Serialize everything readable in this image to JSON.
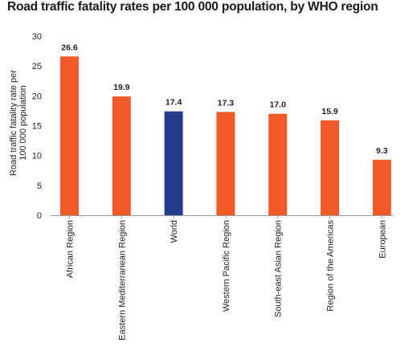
{
  "chart_data": {
    "type": "bar",
    "title": "Road traffic fatality rates per 100 000 population, by WHO region",
    "ylabel": "Road traffic fatality rate per 100 000 population",
    "ylabel_lines": [
      "Road traffic fatality rate per",
      "100 000 population"
    ],
    "xlabel": "",
    "ylim": [
      0,
      30
    ],
    "yticks": [
      0,
      5,
      10,
      15,
      20,
      25,
      30
    ],
    "grid": false,
    "categories": [
      "African Region",
      "Eastern Mediterranean Region",
      "World",
      "Western Pacific Region",
      "South-east Asian Region",
      "Region of the Americas",
      "European"
    ],
    "values": [
      26.6,
      19.9,
      17.4,
      17.3,
      17.0,
      15.9,
      9.3
    ],
    "value_labels": [
      "26.6",
      "19.9",
      "17.4",
      "17.3",
      "17.0",
      "15.9",
      "9.3"
    ],
    "colors": [
      "#f05a28",
      "#f05a28",
      "#283c8c",
      "#f05a28",
      "#f05a28",
      "#f05a28",
      "#f05a28"
    ]
  }
}
